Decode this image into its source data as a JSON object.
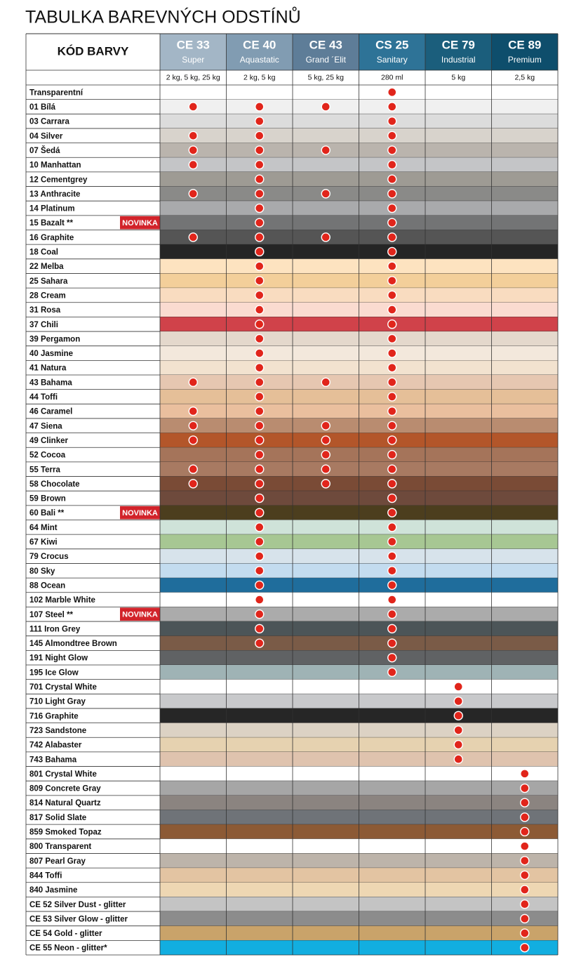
{
  "title": "TABULKA BAREVNÝCH ODSTÍNŮ",
  "table": {
    "header": "KÓD BARVY",
    "products": [
      {
        "code": "CE 33",
        "name": "Super",
        "pack": "2 kg, 5 kg, 25 kg",
        "color": "#a3b6c6"
      },
      {
        "code": "CE 40",
        "name": "Aquastatic",
        "pack": "2 kg, 5 kg",
        "color": "#819cb2"
      },
      {
        "code": "CE 43",
        "name": "Grand ´Elit",
        "pack": "5 kg, 25 kg",
        "color": "#5e7d98"
      },
      {
        "code": "CS 25",
        "name": "Sanitary",
        "pack": "280 ml",
        "color": "#2e7397"
      },
      {
        "code": "CE 79",
        "name": "Industrial",
        "pack": "5 kg",
        "color": "#1b5e7c"
      },
      {
        "code": "CE 89",
        "name": "Premium",
        "pack": "2,5 kg",
        "color": "#0e4e6c"
      }
    ],
    "rows": [
      {
        "name": "Transparentní",
        "color": "#ffffff",
        "available": [
          0,
          0,
          0,
          1,
          0,
          0
        ]
      },
      {
        "name": "01 Bílá",
        "color": "#f0f0f0",
        "available": [
          1,
          1,
          1,
          1,
          0,
          0
        ]
      },
      {
        "name": "03 Carrara",
        "color": "#dcdcdc",
        "available": [
          0,
          1,
          0,
          1,
          0,
          0
        ]
      },
      {
        "name": "04 Silver",
        "color": "#d8d3cc",
        "available": [
          1,
          1,
          0,
          1,
          0,
          0
        ]
      },
      {
        "name": "07 Šedá",
        "color": "#bab4ad",
        "available": [
          1,
          1,
          1,
          1,
          0,
          0
        ]
      },
      {
        "name": "10 Manhattan",
        "color": "#c4c5c7",
        "available": [
          1,
          1,
          0,
          1,
          0,
          0
        ]
      },
      {
        "name": "12 Cementgrey",
        "color": "#9e9b94",
        "available": [
          0,
          1,
          0,
          1,
          0,
          0
        ]
      },
      {
        "name": "13 Anthracite",
        "color": "#8a8a88",
        "available": [
          1,
          1,
          1,
          1,
          0,
          0
        ]
      },
      {
        "name": "14 Platinum",
        "color": "#a9aaac",
        "available": [
          0,
          1,
          0,
          1,
          0,
          0
        ]
      },
      {
        "name": "15 Bazalt **",
        "badge": "NOVINKA",
        "color": "#737475",
        "available": [
          0,
          1,
          0,
          1,
          0,
          0
        ]
      },
      {
        "name": "16 Graphite",
        "color": "#555555",
        "available": [
          1,
          1,
          1,
          1,
          0,
          0
        ]
      },
      {
        "name": "18 Coal",
        "color": "#252525",
        "available": [
          0,
          1,
          0,
          1,
          0,
          0
        ]
      },
      {
        "name": "22 Melba",
        "color": "#fde3c0",
        "available": [
          0,
          1,
          0,
          1,
          0,
          0
        ]
      },
      {
        "name": "25 Sahara",
        "color": "#f3cf9a",
        "available": [
          0,
          1,
          0,
          1,
          0,
          0
        ]
      },
      {
        "name": "28 Cream",
        "color": "#f9dcc0",
        "available": [
          0,
          1,
          0,
          1,
          0,
          0
        ]
      },
      {
        "name": "31 Rosa",
        "color": "#fadbd0",
        "available": [
          0,
          1,
          0,
          1,
          0,
          0
        ]
      },
      {
        "name": "37 Chili",
        "color": "#d0424a",
        "available": [
          0,
          1,
          0,
          1,
          0,
          0
        ]
      },
      {
        "name": "39 Pergamon",
        "color": "#e4d8cc",
        "available": [
          0,
          1,
          0,
          1,
          0,
          0
        ]
      },
      {
        "name": "40 Jasmine",
        "color": "#f3e8dc",
        "available": [
          0,
          1,
          0,
          1,
          0,
          0
        ]
      },
      {
        "name": "41 Natura",
        "color": "#f2e2cf",
        "available": [
          0,
          1,
          0,
          1,
          0,
          0
        ]
      },
      {
        "name": "43 Bahama",
        "color": "#e6c7b1",
        "available": [
          1,
          1,
          1,
          1,
          0,
          0
        ]
      },
      {
        "name": "44 Toffi",
        "color": "#e5bf98",
        "available": [
          0,
          1,
          0,
          1,
          0,
          0
        ]
      },
      {
        "name": "46 Caramel",
        "color": "#eabf9e",
        "available": [
          1,
          1,
          0,
          1,
          0,
          0
        ]
      },
      {
        "name": "47 Siena",
        "color": "#b98c70",
        "available": [
          1,
          1,
          1,
          1,
          0,
          0
        ]
      },
      {
        "name": "49 Clinker",
        "color": "#b3562a",
        "available": [
          1,
          1,
          1,
          1,
          0,
          0
        ]
      },
      {
        "name": "52 Cocoa",
        "color": "#a5745a",
        "available": [
          0,
          1,
          1,
          1,
          0,
          0
        ]
      },
      {
        "name": "55 Terra",
        "color": "#a87a62",
        "available": [
          1,
          1,
          1,
          1,
          0,
          0
        ]
      },
      {
        "name": "58 Chocolate",
        "color": "#7a4b36",
        "available": [
          1,
          1,
          1,
          1,
          0,
          0
        ]
      },
      {
        "name": "59 Brown",
        "color": "#6e4a3c",
        "available": [
          0,
          1,
          0,
          1,
          0,
          0
        ]
      },
      {
        "name": "60 Bali **",
        "badge": "NOVINKA",
        "color": "#4c3e1e",
        "available": [
          0,
          1,
          0,
          1,
          0,
          0
        ]
      },
      {
        "name": "64 Mint",
        "color": "#cfe3d9",
        "available": [
          0,
          1,
          0,
          1,
          0,
          0
        ]
      },
      {
        "name": "67 Kiwi",
        "color": "#a7c793",
        "available": [
          0,
          1,
          0,
          1,
          0,
          0
        ]
      },
      {
        "name": "79 Crocus",
        "color": "#d7e3eb",
        "available": [
          0,
          1,
          0,
          1,
          0,
          0
        ]
      },
      {
        "name": "80 Sky",
        "color": "#c3dcef",
        "available": [
          0,
          1,
          0,
          1,
          0,
          0
        ]
      },
      {
        "name": "88 Ocean",
        "color": "#1f6d9c",
        "available": [
          0,
          1,
          0,
          1,
          0,
          0
        ]
      },
      {
        "name": "102 Marble White",
        "color": "#ffffff",
        "available": [
          0,
          1,
          0,
          1,
          0,
          0
        ]
      },
      {
        "name": "107 Steel **",
        "badge": "NOVINKA",
        "color": "#ababab",
        "available": [
          0,
          1,
          0,
          1,
          0,
          0
        ]
      },
      {
        "name": "111 Iron Grey",
        "color": "#4c5558",
        "available": [
          0,
          1,
          0,
          1,
          0,
          0
        ]
      },
      {
        "name": "145 Almondtree Brown",
        "color": "#7a5b47",
        "available": [
          0,
          1,
          0,
          1,
          0,
          0
        ]
      },
      {
        "name": "191 Night Glow",
        "color": "#606264",
        "available": [
          0,
          0,
          0,
          1,
          0,
          0
        ]
      },
      {
        "name": "195 Ice Glow",
        "color": "#9fb3b5",
        "available": [
          0,
          0,
          0,
          1,
          0,
          0
        ]
      },
      {
        "name": "701 Crystal White",
        "color": "#ffffff",
        "available": [
          0,
          0,
          0,
          0,
          1,
          0
        ]
      },
      {
        "name": "710 Light Gray",
        "color": "#c8c9cb",
        "available": [
          0,
          0,
          0,
          0,
          1,
          0
        ]
      },
      {
        "name": "716 Graphite",
        "color": "#262626",
        "available": [
          0,
          0,
          0,
          0,
          1,
          0
        ]
      },
      {
        "name": "723 Sandstone",
        "color": "#dcd2c4",
        "available": [
          0,
          0,
          0,
          0,
          1,
          0
        ]
      },
      {
        "name": "742 Alabaster",
        "color": "#e6d2b0",
        "available": [
          0,
          0,
          0,
          0,
          1,
          0
        ]
      },
      {
        "name": "743 Bahama",
        "color": "#dfc3ae",
        "available": [
          0,
          0,
          0,
          0,
          1,
          0
        ]
      },
      {
        "name": "801 Crystal White",
        "color": "#ffffff",
        "available": [
          0,
          0,
          0,
          0,
          0,
          1
        ]
      },
      {
        "name": "809 Concrete Gray",
        "color": "#a6a6a6",
        "available": [
          0,
          0,
          0,
          0,
          0,
          1
        ]
      },
      {
        "name": "814 Natural Quartz",
        "color": "#8b8480",
        "available": [
          0,
          0,
          0,
          0,
          0,
          1
        ]
      },
      {
        "name": "817 Solid Slate",
        "color": "#6f7378",
        "available": [
          0,
          0,
          0,
          0,
          0,
          1
        ]
      },
      {
        "name": "859 Smoked Topaz",
        "color": "#8c5a35",
        "available": [
          0,
          0,
          0,
          0,
          0,
          1
        ]
      },
      {
        "name": "800 Transparent",
        "color": "#ffffff",
        "available": [
          0,
          0,
          0,
          0,
          0,
          1
        ]
      },
      {
        "name": "807 Pearl Gray",
        "color": "#bdb4aa",
        "available": [
          0,
          0,
          0,
          0,
          0,
          1
        ]
      },
      {
        "name": "844 Toffi",
        "color": "#e3c4a2",
        "available": [
          0,
          0,
          0,
          0,
          0,
          1
        ]
      },
      {
        "name": "840 Jasmine",
        "color": "#eed7b3",
        "available": [
          0,
          0,
          0,
          0,
          0,
          1
        ]
      },
      {
        "name": "CE 52 Silver Dust - glitter",
        "color": "#c4c4c4",
        "available": [
          0,
          0,
          0,
          0,
          0,
          1
        ]
      },
      {
        "name": "CE 53 Silver Glow - glitter",
        "color": "#8c8c8c",
        "available": [
          0,
          0,
          0,
          0,
          0,
          1
        ]
      },
      {
        "name": "CE 54 Gold - glitter",
        "color": "#c9a36a",
        "available": [
          0,
          0,
          0,
          0,
          0,
          1
        ]
      },
      {
        "name": "CE 55 Neon - glitter*",
        "color": "#12aee0",
        "available": [
          0,
          0,
          0,
          0,
          0,
          1
        ]
      }
    ]
  }
}
